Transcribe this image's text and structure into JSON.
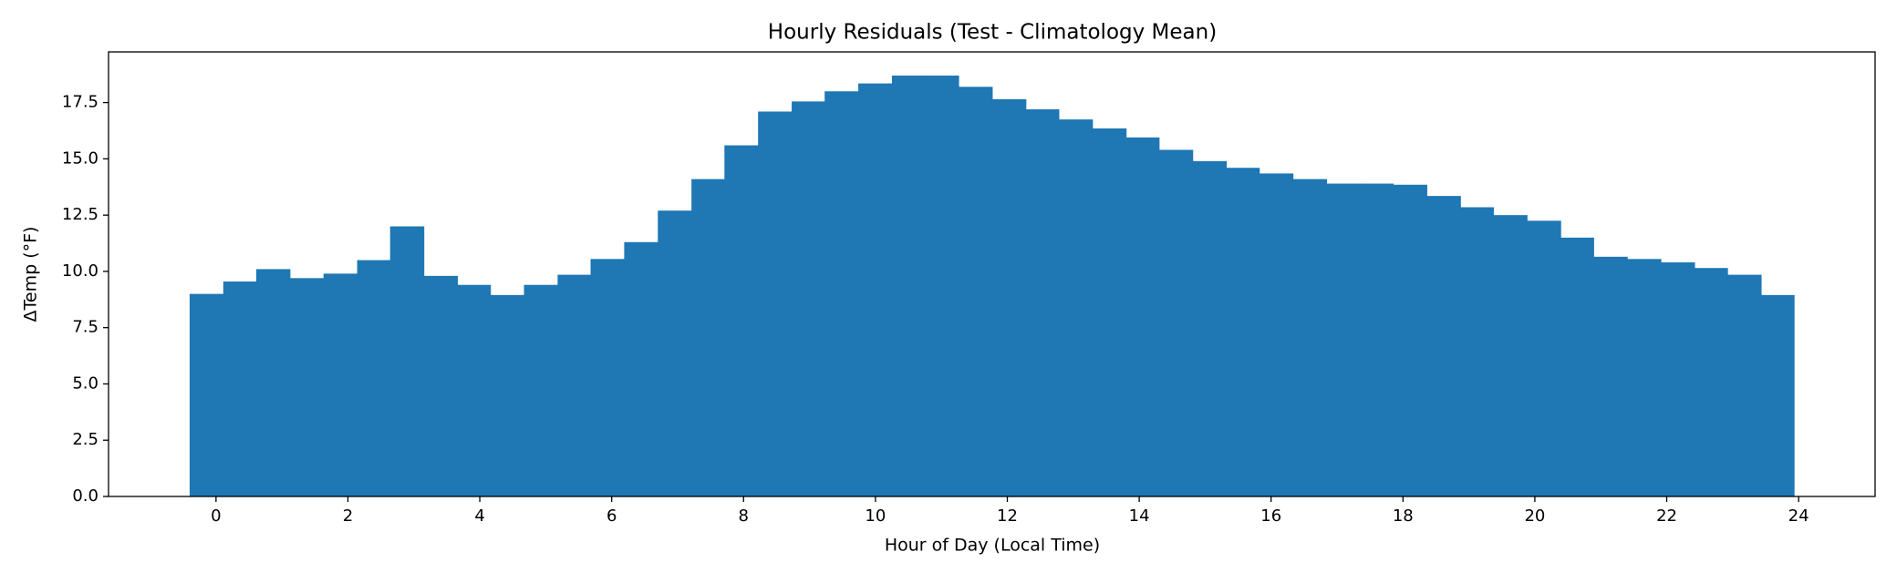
{
  "chart_data": {
    "type": "histogram",
    "title": "Hourly Residuals (Test - Climatology Mean)",
    "xlabel": "Hour of Day (Local Time)",
    "ylabel": "ΔTemp (°F)",
    "color": "#1f77b4",
    "bins": [
      -0.4,
      0.11,
      0.61,
      1.12,
      1.63,
      2.14,
      2.64,
      3.15,
      3.66,
      4.16,
      4.67,
      5.18,
      5.68,
      6.19,
      6.7,
      7.21,
      7.71,
      8.22,
      8.73,
      9.23,
      9.74,
      10.25,
      10.75,
      11.26,
      11.77,
      12.28,
      12.78,
      13.29,
      13.8,
      14.3,
      14.81,
      15.32,
      15.82,
      16.33,
      16.84,
      17.35,
      17.85,
      18.36,
      18.87,
      19.37,
      19.88,
      20.39,
      20.89,
      21.4,
      21.91,
      22.42,
      22.92,
      23.43,
      23.93
    ],
    "values": [
      9.0,
      9.55,
      10.1,
      9.7,
      9.9,
      10.5,
      12.0,
      9.8,
      9.4,
      8.95,
      9.4,
      9.85,
      10.55,
      11.3,
      12.7,
      14.1,
      15.6,
      17.1,
      17.55,
      18.0,
      18.35,
      18.7,
      18.7,
      18.2,
      17.65,
      17.2,
      16.75,
      16.35,
      15.95,
      15.4,
      14.9,
      14.6,
      14.35,
      14.1,
      13.9,
      13.9,
      13.85,
      13.35,
      12.85,
      12.5,
      12.25,
      11.5,
      10.65,
      10.55,
      10.4,
      10.15,
      9.85,
      8.95
    ],
    "xlim": [
      -1.63,
      25.16
    ],
    "xticks": [
      0,
      2,
      4,
      6,
      8,
      10,
      12,
      14,
      16,
      18,
      20,
      22,
      24
    ],
    "ylim": [
      0,
      19.75
    ],
    "yticks": [
      {
        "value": 0,
        "label": "0.0"
      },
      2.5,
      {
        "value": 5,
        "label": "5.0"
      },
      7.5,
      {
        "value": 10,
        "label": "10.0"
      },
      12.5,
      {
        "value": 15,
        "label": "15.0"
      },
      17.5
    ]
  }
}
